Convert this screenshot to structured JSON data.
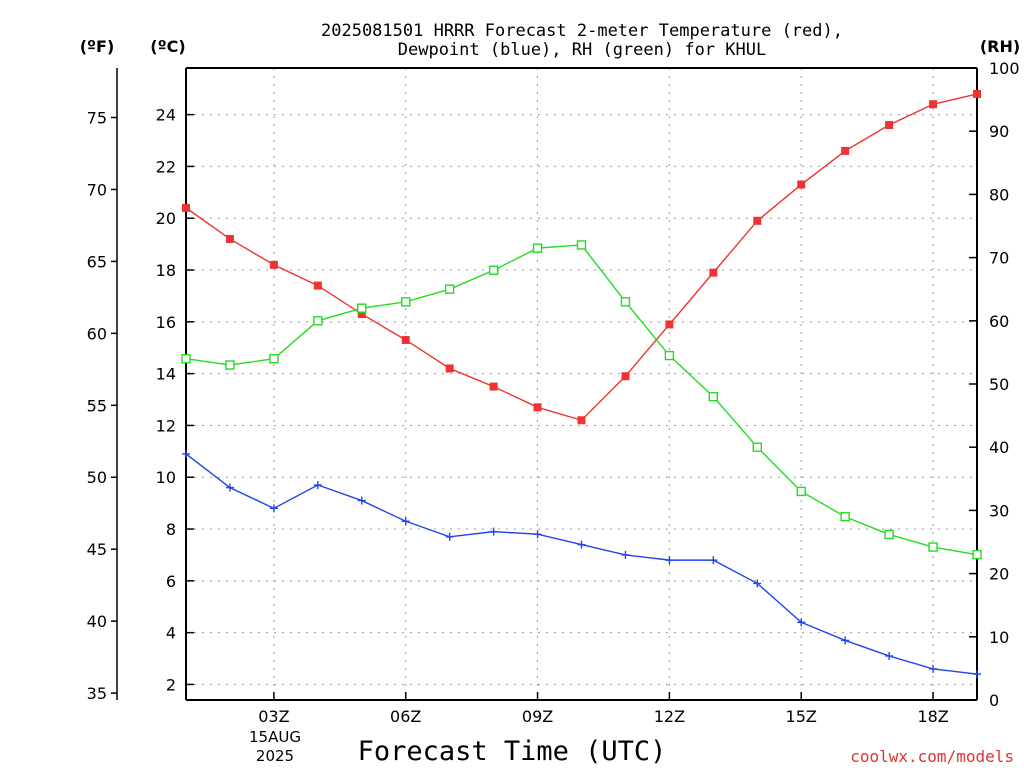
{
  "chart_data": {
    "type": "line",
    "title_line1": "2025081501 HRRR Forecast 2-meter Temperature (red),",
    "title_line2": "Dewpoint (blue), RH (green) for KHUL",
    "xlabel": "Forecast Time (UTC)",
    "y_left_label": "(ºC)",
    "y_left_outer_label": "(ºF)",
    "y_right_label": "(RH)",
    "date_line1": "15AUG",
    "date_line2": "2025",
    "credit": "coolwx.com/models",
    "ylim_c": [
      1.4,
      25.8
    ],
    "ylim_rh": [
      0,
      100
    ],
    "xlim_hours": [
      1,
      19
    ],
    "x_ticks": [
      {
        "hour": 3,
        "label": "03Z"
      },
      {
        "hour": 6,
        "label": "06Z"
      },
      {
        "hour": 9,
        "label": "09Z"
      },
      {
        "hour": 12,
        "label": "12Z"
      },
      {
        "hour": 15,
        "label": "15Z"
      },
      {
        "hour": 18,
        "label": "18Z"
      }
    ],
    "y_ticks_c": [
      {
        "v": 2,
        "label": "2"
      },
      {
        "v": 4,
        "label": "4"
      },
      {
        "v": 6,
        "label": "6"
      },
      {
        "v": 8,
        "label": "8"
      },
      {
        "v": 10,
        "label": "10"
      },
      {
        "v": 12,
        "label": "12"
      },
      {
        "v": 14,
        "label": "14"
      },
      {
        "v": 16,
        "label": "16"
      },
      {
        "v": 18,
        "label": "18"
      },
      {
        "v": 20,
        "label": "20"
      },
      {
        "v": 22,
        "label": "22"
      },
      {
        "v": 24,
        "label": "24"
      }
    ],
    "y_ticks_f": [
      {
        "v": 35,
        "label": "35"
      },
      {
        "v": 40,
        "label": "40"
      },
      {
        "v": 45,
        "label": "45"
      },
      {
        "v": 50,
        "label": "50"
      },
      {
        "v": 55,
        "label": "55"
      },
      {
        "v": 60,
        "label": "60"
      },
      {
        "v": 65,
        "label": "65"
      },
      {
        "v": 70,
        "label": "70"
      },
      {
        "v": 75,
        "label": "75"
      }
    ],
    "y_ticks_rh": [
      {
        "v": 0,
        "label": "0"
      },
      {
        "v": 10,
        "label": "10"
      },
      {
        "v": 20,
        "label": "20"
      },
      {
        "v": 30,
        "label": "30"
      },
      {
        "v": 40,
        "label": "40"
      },
      {
        "v": 50,
        "label": "50"
      },
      {
        "v": 60,
        "label": "60"
      },
      {
        "v": 70,
        "label": "70"
      },
      {
        "v": 80,
        "label": "80"
      },
      {
        "v": 90,
        "label": "90"
      },
      {
        "v": 100,
        "label": "100"
      }
    ],
    "grid": true,
    "x": [
      1,
      2,
      3,
      4,
      5,
      6,
      7,
      8,
      9,
      10,
      11,
      12,
      13,
      14,
      15,
      16,
      17,
      18,
      19
    ],
    "series": [
      {
        "name": "Temperature",
        "axis": "c",
        "color": "#ee3333",
        "marker": "filled-square",
        "values": [
          20.4,
          19.2,
          18.2,
          17.4,
          16.3,
          15.3,
          14.2,
          13.5,
          12.7,
          12.2,
          13.9,
          15.9,
          17.9,
          19.9,
          21.3,
          22.6,
          23.6,
          24.4,
          24.8
        ]
      },
      {
        "name": "Dewpoint",
        "axis": "c",
        "color": "#2244ee",
        "marker": "plus",
        "values": [
          10.9,
          9.6,
          8.8,
          9.7,
          9.1,
          8.3,
          7.7,
          7.9,
          7.8,
          7.4,
          7.0,
          6.8,
          6.8,
          5.9,
          4.4,
          3.7,
          3.1,
          2.6,
          2.4
        ]
      },
      {
        "name": "RH",
        "axis": "rh",
        "color": "#22dd22",
        "marker": "open-square",
        "values": [
          54,
          53,
          54,
          60,
          62,
          63,
          65,
          68,
          71.5,
          72,
          63,
          54.5,
          48,
          40,
          33,
          29,
          26.2,
          24.2,
          23
        ]
      }
    ]
  }
}
